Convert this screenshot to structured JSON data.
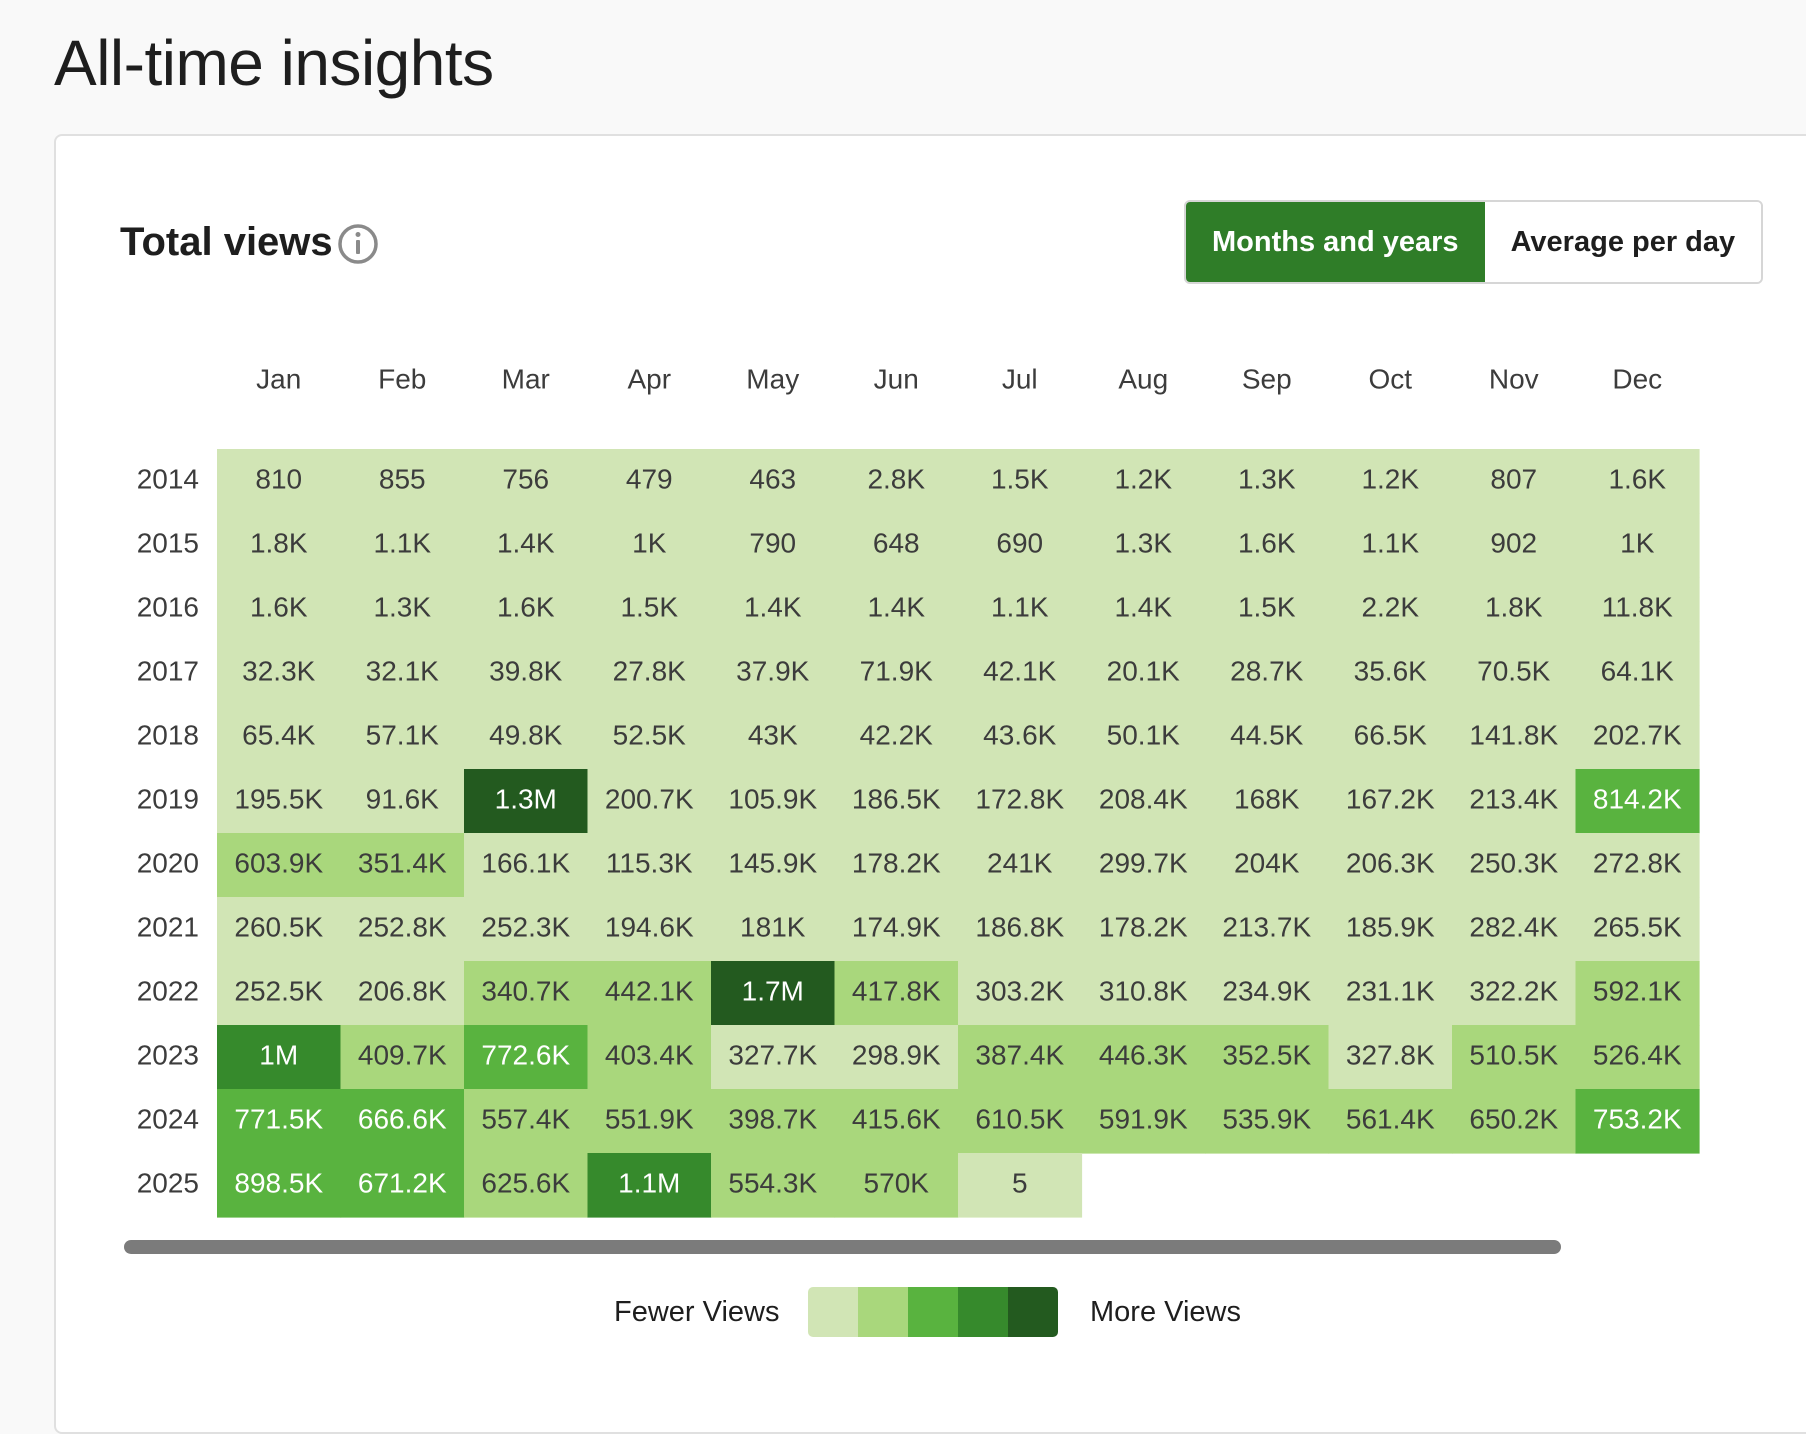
{
  "page": {
    "title": "All-time insights"
  },
  "card": {
    "title": "Total views",
    "toggle": {
      "options": [
        "Months and years",
        "Average per day"
      ],
      "selected": "Months and years"
    }
  },
  "legend": {
    "fewer_label": "Fewer Views",
    "more_label": "More Views",
    "colors": [
      "#d1e5b5",
      "#a9d77c",
      "#59b33f",
      "#368a2c",
      "#235a1f"
    ]
  },
  "chart_data": {
    "type": "heatmap",
    "x_categories": [
      "Jan",
      "Feb",
      "Mar",
      "Apr",
      "May",
      "Jun",
      "Jul",
      "Aug",
      "Sep",
      "Oct",
      "Nov",
      "Dec"
    ],
    "y_categories": [
      "2014",
      "2015",
      "2016",
      "2017",
      "2018",
      "2019",
      "2020",
      "2021",
      "2022",
      "2023",
      "2024",
      "2025"
    ],
    "values": [
      [
        "810",
        "855",
        "756",
        "479",
        "463",
        "2.8K",
        "1.5K",
        "1.2K",
        "1.3K",
        "1.2K",
        "807",
        "1.6K"
      ],
      [
        "1.8K",
        "1.1K",
        "1.4K",
        "1K",
        "790",
        "648",
        "690",
        "1.3K",
        "1.6K",
        "1.1K",
        "902",
        "1K"
      ],
      [
        "1.6K",
        "1.3K",
        "1.6K",
        "1.5K",
        "1.4K",
        "1.4K",
        "1.1K",
        "1.4K",
        "1.5K",
        "2.2K",
        "1.8K",
        "11.8K"
      ],
      [
        "32.3K",
        "32.1K",
        "39.8K",
        "27.8K",
        "37.9K",
        "71.9K",
        "42.1K",
        "20.1K",
        "28.7K",
        "35.6K",
        "70.5K",
        "64.1K"
      ],
      [
        "65.4K",
        "57.1K",
        "49.8K",
        "52.5K",
        "43K",
        "42.2K",
        "43.6K",
        "50.1K",
        "44.5K",
        "66.5K",
        "141.8K",
        "202.7K"
      ],
      [
        "195.5K",
        "91.6K",
        "1.3M",
        "200.7K",
        "105.9K",
        "186.5K",
        "172.8K",
        "208.4K",
        "168K",
        "167.2K",
        "213.4K",
        "814.2K"
      ],
      [
        "603.9K",
        "351.4K",
        "166.1K",
        "115.3K",
        "145.9K",
        "178.2K",
        "241K",
        "299.7K",
        "204K",
        "206.3K",
        "250.3K",
        "272.8K"
      ],
      [
        "260.5K",
        "252.8K",
        "252.3K",
        "194.6K",
        "181K",
        "174.9K",
        "186.8K",
        "178.2K",
        "213.7K",
        "185.9K",
        "282.4K",
        "265.5K"
      ],
      [
        "252.5K",
        "206.8K",
        "340.7K",
        "442.1K",
        "1.7M",
        "417.8K",
        "303.2K",
        "310.8K",
        "234.9K",
        "231.1K",
        "322.2K",
        "592.1K"
      ],
      [
        "1M",
        "409.7K",
        "772.6K",
        "403.4K",
        "327.7K",
        "298.9K",
        "387.4K",
        "446.3K",
        "352.5K",
        "327.8K",
        "510.5K",
        "526.4K"
      ],
      [
        "771.5K",
        "666.6K",
        "557.4K",
        "551.9K",
        "398.7K",
        "415.6K",
        "610.5K",
        "591.9K",
        "535.9K",
        "561.4K",
        "650.2K",
        "753.2K"
      ],
      [
        "898.5K",
        "671.2K",
        "625.6K",
        "1.1M",
        "554.3K",
        "570K",
        "5",
        null,
        null,
        null,
        null,
        null
      ]
    ],
    "intensity_levels": [
      [
        0,
        0,
        0,
        0,
        0,
        0,
        0,
        0,
        0,
        0,
        0,
        0
      ],
      [
        0,
        0,
        0,
        0,
        0,
        0,
        0,
        0,
        0,
        0,
        0,
        0
      ],
      [
        0,
        0,
        0,
        0,
        0,
        0,
        0,
        0,
        0,
        0,
        0,
        0
      ],
      [
        0,
        0,
        0,
        0,
        0,
        0,
        0,
        0,
        0,
        0,
        0,
        0
      ],
      [
        0,
        0,
        0,
        0,
        0,
        0,
        0,
        0,
        0,
        0,
        0,
        0
      ],
      [
        0,
        0,
        4,
        0,
        0,
        0,
        0,
        0,
        0,
        0,
        0,
        2
      ],
      [
        1,
        1,
        0,
        0,
        0,
        0,
        0,
        0,
        0,
        0,
        0,
        0
      ],
      [
        0,
        0,
        0,
        0,
        0,
        0,
        0,
        0,
        0,
        0,
        0,
        0
      ],
      [
        0,
        0,
        1,
        1,
        4,
        1,
        0,
        0,
        0,
        0,
        0,
        1
      ],
      [
        3,
        1,
        2,
        1,
        0,
        0,
        1,
        1,
        1,
        0,
        1,
        1
      ],
      [
        2,
        2,
        1,
        1,
        1,
        1,
        1,
        1,
        1,
        1,
        1,
        2
      ],
      [
        2,
        2,
        1,
        3,
        1,
        1,
        0,
        null,
        null,
        null,
        null,
        null
      ]
    ],
    "legend": "bottom-center",
    "grid": false
  }
}
